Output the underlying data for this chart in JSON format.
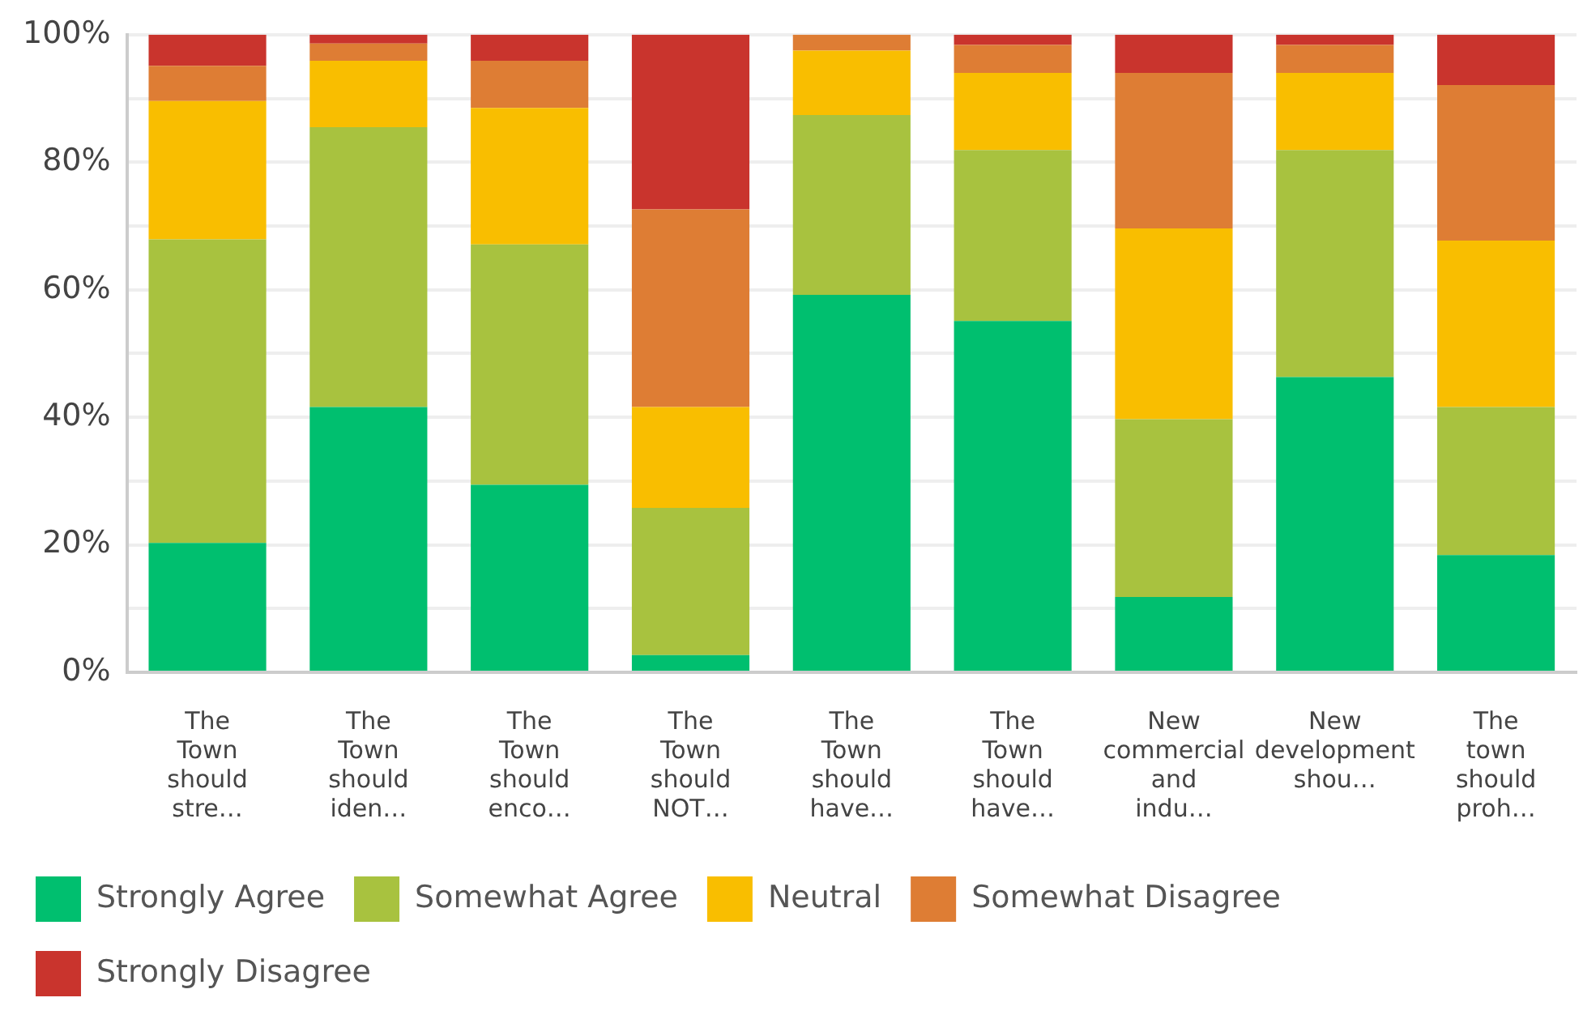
{
  "chart_data": {
    "type": "bar",
    "stacked": true,
    "categories": [
      "The Town should stre…",
      "The Town should iden…",
      "The Town should enco…",
      "The Town should NOT…",
      "The Town should have…",
      "The Town should have…",
      "New commercial and indu…",
      "New development shou…",
      "The town should proh…"
    ],
    "series": [
      {
        "name": "Strongly Agree",
        "color": "#00bf6f",
        "values": [
          20.3,
          41.6,
          29.4,
          2.7,
          59.2,
          55.1,
          11.8,
          46.3,
          18.4
        ]
      },
      {
        "name": "Somewhat Agree",
        "color": "#a8c23f",
        "values": [
          47.6,
          43.9,
          37.7,
          23.1,
          28.2,
          26.8,
          27.9,
          35.6,
          23.2
        ]
      },
      {
        "name": "Neutral",
        "color": "#f9be00",
        "values": [
          21.7,
          10.4,
          21.4,
          15.8,
          10.1,
          12.1,
          29.9,
          12.1,
          26.1
        ]
      },
      {
        "name": "Somewhat Disagree",
        "color": "#de7d34",
        "values": [
          5.5,
          2.7,
          7.4,
          31.0,
          2.5,
          4.4,
          24.4,
          4.4,
          24.4
        ]
      },
      {
        "name": "Strongly Disagree",
        "color": "#c9342d",
        "values": [
          4.9,
          1.4,
          4.1,
          27.4,
          0,
          1.6,
          6.0,
          1.6,
          7.9
        ]
      }
    ],
    "ylim": [
      0,
      100
    ],
    "yticks": [
      {
        "value": 0,
        "label": "0%"
      },
      {
        "value": 10,
        "label": null
      },
      {
        "value": 20,
        "label": "20%"
      },
      {
        "value": 30,
        "label": null
      },
      {
        "value": 40,
        "label": "40%"
      },
      {
        "value": 50,
        "label": null
      },
      {
        "value": 60,
        "label": "60%"
      },
      {
        "value": 70,
        "label": null
      },
      {
        "value": 80,
        "label": "80%"
      },
      {
        "value": 90,
        "label": null
      },
      {
        "value": 100,
        "label": "100%"
      }
    ],
    "grid": "y",
    "legend": "bottom"
  }
}
